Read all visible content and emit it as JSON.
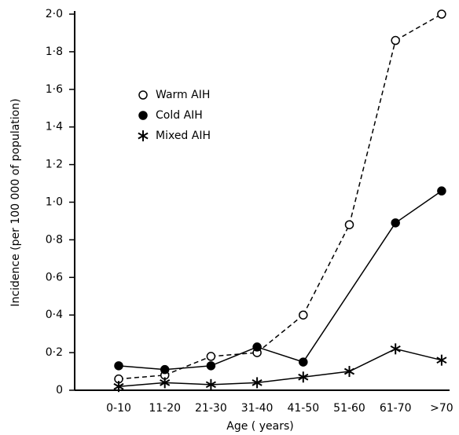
{
  "chart_data": {
    "type": "line",
    "y_label": "Incidence  (per 100 000 of population)",
    "x_label": "Age ( years)",
    "categories": [
      "0-10",
      "11-20",
      "21-30",
      "31-40",
      "41-50",
      "51-60",
      "61-70",
      ">70"
    ],
    "series": [
      {
        "name": "Warm AIH",
        "marker": "open-circle",
        "dash": true,
        "color": "#000000",
        "values": [
          0.06,
          0.08,
          0.18,
          0.2,
          0.4,
          0.88,
          1.86,
          2.0
        ]
      },
      {
        "name": "Cold AIH",
        "marker": "filled-circle",
        "dash": false,
        "color": "#000000",
        "values": [
          0.13,
          0.11,
          0.13,
          0.23,
          0.15,
          null,
          0.89,
          1.06
        ]
      },
      {
        "name": "Mixed AIH",
        "marker": "asterisk",
        "dash": false,
        "color": "#000000",
        "values": [
          0.02,
          0.04,
          0.03,
          0.04,
          0.07,
          0.1,
          0.22,
          0.16
        ]
      }
    ],
    "ylim": [
      0,
      2.0
    ],
    "yticks": [
      0,
      {
        "value": 0.2,
        "label": "0·2"
      },
      {
        "value": 0.4,
        "label": "0·4"
      },
      {
        "value": 0.6,
        "label": "0·6"
      },
      {
        "value": 0.8,
        "label": "0·8"
      },
      {
        "value": 1.0,
        "label": "1·0"
      },
      {
        "value": 1.2,
        "label": "1·2"
      },
      {
        "value": 1.4,
        "label": "1·4"
      },
      {
        "value": 1.6,
        "label": "1·6"
      },
      {
        "value": 1.8,
        "label": "1·8"
      },
      {
        "value": 2.0,
        "label": "2·0"
      }
    ],
    "grid": false
  }
}
